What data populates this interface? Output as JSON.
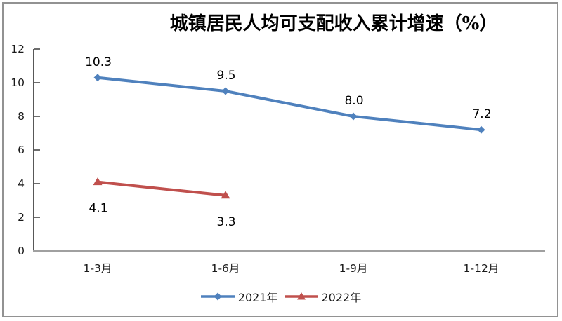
{
  "window": {
    "background": "#ffffff",
    "frame_border_color": "#929292"
  },
  "chart_data": {
    "type": "line",
    "title": "城镇居民人均可支配收入累计增速（%）",
    "categories": [
      "1-3月",
      "1-6月",
      "1-9月",
      "1-12月"
    ],
    "series": [
      {
        "name": "2021年",
        "values": [
          10.3,
          9.5,
          8.0,
          7.2
        ],
        "color": "#4F81BD",
        "marker": "diamond",
        "label_position": "above"
      },
      {
        "name": "2022年",
        "values": [
          4.1,
          3.3
        ],
        "color": "#C0504D",
        "marker": "triangle",
        "label_position": "below"
      }
    ],
    "ylim": [
      0,
      12
    ],
    "yticks": [
      0,
      2,
      4,
      6,
      8,
      10,
      12
    ],
    "grid": false,
    "legend_position": "bottom",
    "axis_color": "#2e2e2e",
    "xaxis_color": "#a0a0a0",
    "label_color": "#1a1a1a",
    "data_label_color": "#000000",
    "data_label_decimals": 1
  }
}
